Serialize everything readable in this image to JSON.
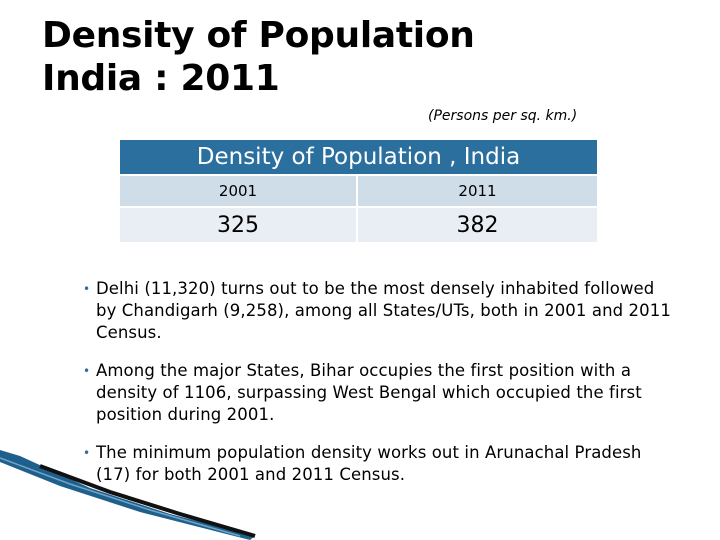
{
  "slide": {
    "title_line1": "Density of Population",
    "title_line2": "India : 2011",
    "units": "(Persons per sq. km.)"
  },
  "table": {
    "header": "Density of Population , India",
    "columns": [
      "2001",
      "2011"
    ],
    "values": [
      "325",
      "382"
    ]
  },
  "bullets": [
    "Delhi (11,320) turns out to be the most densely inhabited followed by Chandigarh (9,258), among all States/UTs, both in 2001 and 2011 Census.",
    "Among the major States, Bihar occupies the first position with a density of 1106, surpassing West Bengal which occupied the first position during 2001.",
    "The minimum population density works out in Arunachal Pradesh (17) for both 2001 and 2011 Census."
  ],
  "colors": {
    "header_bg": "#2b6f9e",
    "year_row_bg": "#cfdde8",
    "value_row_bg": "#e8eef4"
  }
}
